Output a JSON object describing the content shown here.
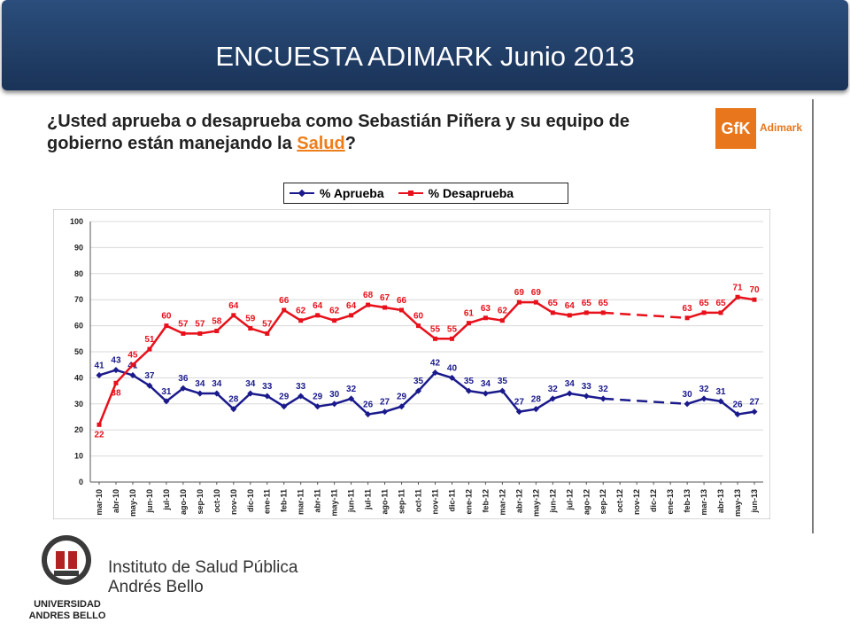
{
  "header": {
    "title": "ENCUESTA ADIMARK Junio 2013"
  },
  "question": {
    "prefix": "¿Usted aprueba o desaprueba como Sebastián Piñera y su equipo de gobierno están manejando la ",
    "highlight": "Salud",
    "suffix": "?"
  },
  "brand": {
    "logo_mark": "GfK",
    "logo_word": "Adimark"
  },
  "footer": {
    "university": "UNIVERSIDAD ANDRES BELLO",
    "institute_line1": "Instituto de Salud Pública",
    "institute_line2": "Andrés Bello"
  },
  "colors": {
    "aprueba": "#1a1a8c",
    "desaprueba": "#e8101a",
    "accent": "#ee7d1a",
    "banner": "#1f3d66"
  },
  "chart_data": {
    "type": "line",
    "ylim": [
      0,
      100
    ],
    "yticks": [
      0,
      10,
      20,
      30,
      40,
      50,
      60,
      70,
      80,
      90,
      100
    ],
    "grid": true,
    "legend": "top-center",
    "categories": [
      "mar-10",
      "abr-10",
      "may-10",
      "jun-10",
      "jul-10",
      "ago-10",
      "sep-10",
      "oct-10",
      "nov-10",
      "dic-10",
      "ene-11",
      "feb-11",
      "mar-11",
      "abr-11",
      "may-11",
      "jun-11",
      "jul-11",
      "ago-11",
      "sep-11",
      "oct-11",
      "nov-11",
      "dic-11",
      "ene-12",
      "feb-12",
      "mar-12",
      "abr-12",
      "may-12",
      "jun-12",
      "jul-12",
      "ago-12",
      "sep-12",
      "oct-12",
      "nov-12",
      "dic-12",
      "ene-13",
      "feb-13",
      "mar-13",
      "abr-13",
      "may-13",
      "jun-13"
    ],
    "series": [
      {
        "name": "% Aprueba",
        "color": "#1a1a8c",
        "marker": "diamond",
        "values": [
          41,
          43,
          41,
          37,
          31,
          36,
          34,
          34,
          28,
          34,
          33,
          29,
          33,
          29,
          30,
          32,
          26,
          27,
          29,
          35,
          42,
          40,
          35,
          34,
          35,
          27,
          28,
          32,
          34,
          33,
          32,
          null,
          null,
          null,
          null,
          30,
          32,
          31,
          26,
          27
        ],
        "labeled": [
          true,
          true,
          true,
          true,
          true,
          true,
          true,
          true,
          true,
          true,
          true,
          true,
          true,
          true,
          true,
          true,
          true,
          true,
          true,
          true,
          true,
          true,
          true,
          true,
          true,
          true,
          true,
          true,
          true,
          true,
          true,
          false,
          false,
          false,
          false,
          true,
          true,
          true,
          true,
          true
        ]
      },
      {
        "name": "% Desaprueba",
        "color": "#e8101a",
        "marker": "square",
        "values": [
          22,
          38,
          45,
          51,
          60,
          57,
          57,
          58,
          64,
          59,
          57,
          66,
          62,
          64,
          62,
          64,
          68,
          67,
          66,
          60,
          55,
          55,
          61,
          63,
          62,
          69,
          69,
          65,
          64,
          65,
          65,
          null,
          null,
          null,
          null,
          63,
          65,
          65,
          71,
          70
        ],
        "labeled": [
          true,
          true,
          true,
          true,
          true,
          true,
          true,
          true,
          true,
          true,
          true,
          true,
          true,
          true,
          true,
          true,
          true,
          true,
          true,
          true,
          true,
          true,
          true,
          true,
          true,
          true,
          true,
          true,
          true,
          true,
          true,
          false,
          false,
          false,
          false,
          true,
          true,
          true,
          true,
          true
        ]
      }
    ],
    "gap_connect": {
      "from": "sep-12",
      "to": "feb-13",
      "style": "dashed"
    }
  }
}
